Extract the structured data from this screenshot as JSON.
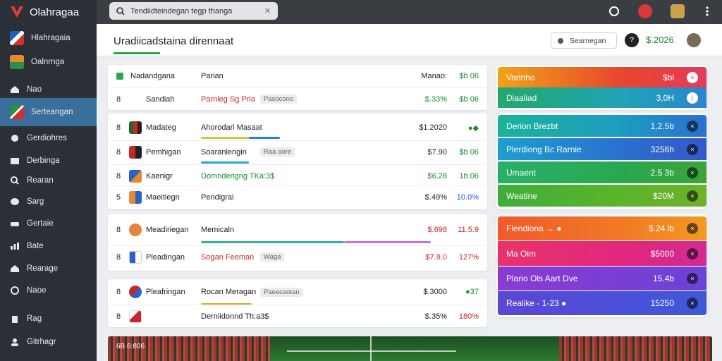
{
  "app": {
    "name": "Olahragaa",
    "colors": {
      "sidebar": "#2b2f36",
      "active": "#3a6f9b",
      "accent_green": "#1c8a2e",
      "accent_red": "#c62828"
    }
  },
  "sidebar": {
    "items": [
      {
        "label": "Hlahragaia",
        "icon": "flag-icon"
      },
      {
        "label": "Oalnrnga",
        "icon": "flag-icon"
      },
      {
        "label": "Nao",
        "icon": "home-icon"
      },
      {
        "label": "Serteangan",
        "icon": "flag-icon",
        "active": true
      },
      {
        "label": "Gerdiohres",
        "icon": "clock-icon"
      },
      {
        "label": "Derbinga",
        "icon": "inbox-icon"
      },
      {
        "label": "Rearan",
        "icon": "search-icon"
      },
      {
        "label": "Sarg",
        "icon": "chat-icon"
      },
      {
        "label": "Gertaie",
        "icon": "car-icon"
      },
      {
        "label": "Bate",
        "icon": "chart-icon"
      },
      {
        "label": "Rearage",
        "icon": "home-icon"
      },
      {
        "label": "Naoe",
        "icon": "settings-icon"
      },
      {
        "label": "Rag",
        "icon": "trash-icon"
      },
      {
        "label": "Gitrhagr",
        "icon": "user-icon"
      }
    ]
  },
  "topbar": {
    "search_text": "Tendiidteindegan tegp thanga",
    "clear": "✕",
    "icons": [
      "refresh-icon",
      "notifications-icon",
      "profile-icon",
      "more-icon"
    ]
  },
  "header": {
    "title": "Uradiicadstaina dirennaat",
    "button_label": "Searnegan",
    "badge": "?",
    "value": "$.2026"
  },
  "card1": {
    "rows": [
      {
        "num": "",
        "name": "Nadandgana",
        "opp": "Parian",
        "tag": "",
        "price": "Manao:",
        "change": "$b 06",
        "price_color": "dark",
        "change_color": "green"
      },
      {
        "num": "8",
        "name": "Sandiah",
        "opp": "Parnleg Sg Pria",
        "tag": "Pasocono",
        "price": "$.33%",
        "change": "$b 06",
        "price_color": "green",
        "change_color": "green"
      }
    ]
  },
  "card2": {
    "rows": [
      {
        "num": "8",
        "name": "Madateg",
        "opp": "Ahorodari Masaat",
        "tag": "",
        "price": "$1.2020",
        "change": "●◆",
        "price_color": "dark",
        "change_color": "green"
      },
      {
        "num": "8",
        "name": "Pemhigan",
        "opp": "Soaranlengin",
        "tag": "Raa aore",
        "price": "$7.90",
        "change": "$b 06",
        "price_color": "dark",
        "change_color": "green"
      },
      {
        "num": "8",
        "name": "Kaenigr",
        "opp": "Domnderigng TKa:3$",
        "tag": "",
        "price": "$6.28",
        "change": "1b.06",
        "price_color": "green",
        "change_color": "green"
      },
      {
        "num": "5",
        "name": "Maeitiegn",
        "opp": "Pendigrai",
        "tag": "",
        "price": "$.49%",
        "change": "10.0%",
        "price_color": "dark",
        "change_color": "blue"
      }
    ]
  },
  "card3": {
    "rows": [
      {
        "num": "8",
        "name": "Meadiriegan",
        "opp": "Memicaln",
        "tag": "",
        "price": "$.698",
        "change": "11.5.9",
        "price_color": "red",
        "change_color": "red"
      },
      {
        "num": "8",
        "name": "Pleadingan",
        "opp": "Sogan Feeman",
        "tag": "Waga",
        "price": "$7.9.0",
        "change": "127%",
        "price_color": "red",
        "change_color": "red"
      }
    ]
  },
  "card4": {
    "rows": [
      {
        "num": "8",
        "name": "Pleafringan",
        "opp": "Rocan Meragan",
        "tag": "Paeecaotan",
        "price": "$.3000",
        "change": "●37",
        "price_color": "dark",
        "change_color": "green"
      },
      {
        "num": "8",
        "name": "",
        "opp": "Derniidonnd Th:a3$",
        "tag": "",
        "price": "$.35%",
        "change": "180%",
        "price_color": "dark",
        "change_color": "red"
      }
    ]
  },
  "panel1": {
    "rows": [
      {
        "label": "Varinho",
        "value": "$bl",
        "icon": "close-icon"
      },
      {
        "label": "Diaaliad",
        "value": "3,0H",
        "icon": "info-icon"
      }
    ]
  },
  "panel2": {
    "rows": [
      {
        "label": "Derion Brezbt",
        "value": "1,2.5b",
        "icon": "close-icon"
      },
      {
        "label": "Plerdiong Bc Rarnie",
        "value": "3256h",
        "icon": "close-icon"
      },
      {
        "label": "Umaent",
        "value": "2.5 3b",
        "icon": "close-icon"
      },
      {
        "label": "Weatine",
        "value": "$20M",
        "icon": "close-icon"
      }
    ]
  },
  "panel3": {
    "rows": [
      {
        "label": "Flendiona → ●",
        "value": "$.24 lb",
        "icon": "close-icon"
      },
      {
        "label": "Ma Oim",
        "value": "$5000",
        "icon": "close-icon"
      },
      {
        "label": "Plano Ols Aart Dve",
        "value": "15.4b",
        "icon": "close-icon"
      },
      {
        "label": "Realike - 1-23 ●",
        "value": "15250",
        "icon": "close-icon"
      }
    ]
  },
  "stadium": {
    "score": "6B 6:806"
  }
}
